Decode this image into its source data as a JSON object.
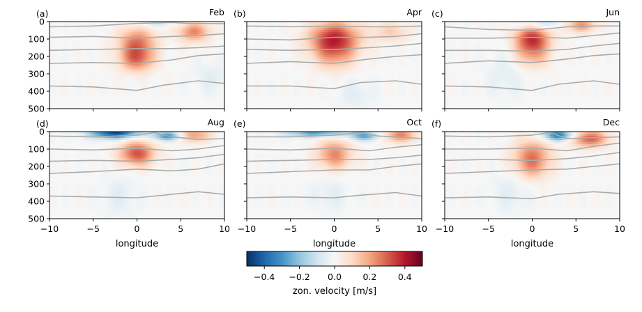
{
  "chart_data": {
    "type": "heatmap",
    "panels": [
      {
        "letter": "(a)",
        "month": "Feb"
      },
      {
        "letter": "(b)",
        "month": "Apr"
      },
      {
        "letter": "(c)",
        "month": "Jun"
      },
      {
        "letter": "(d)",
        "month": "Aug"
      },
      {
        "letter": "(e)",
        "month": "Oct"
      },
      {
        "letter": "(f)",
        "month": "Dec"
      }
    ],
    "xlabel": "longitude",
    "xlim": [
      -10,
      10
    ],
    "xticks": [
      -10,
      -5,
      0,
      5,
      10
    ],
    "ylim": [
      500,
      0
    ],
    "yticks": [
      0,
      100,
      200,
      300,
      400,
      500
    ],
    "colorbar": {
      "label": "zon. velocity [m/s]",
      "range": [
        -0.5,
        0.5
      ],
      "ticks": [
        -0.4,
        -0.2,
        0.0,
        0.2,
        0.4
      ],
      "tick_labels": [
        "−0.4",
        "−0.2",
        "0.0",
        "0.2",
        "0.4"
      ],
      "colormap": "RdBu_r"
    },
    "contour_color": "#aaaaaa",
    "fields": [
      {
        "blobs": [
          {
            "lon": 0.0,
            "depth": 120,
            "slon": 1.5,
            "sdep": 60,
            "amp": 0.26
          },
          {
            "lon": 0.0,
            "depth": 220,
            "slon": 1.4,
            "sdep": 50,
            "amp": 0.24
          },
          {
            "lon": 6.5,
            "depth": 60,
            "slon": 1.3,
            "sdep": 40,
            "amp": 0.24
          },
          {
            "lon": 2.0,
            "depth": 5,
            "slon": 1.5,
            "sdep": 20,
            "amp": -0.1
          },
          {
            "lon": 8.5,
            "depth": 320,
            "slon": 1.5,
            "sdep": 60,
            "amp": -0.05
          }
        ],
        "contours": [
          {
            "lon": [
              -10,
              -5,
              0,
              4,
              6,
              10
            ],
            "depth": [
              30,
              25,
              10,
              5,
              10,
              12
            ]
          },
          {
            "lon": [
              -10,
              -5,
              0,
              4,
              7,
              10
            ],
            "depth": [
              90,
              85,
              95,
              85,
              80,
              70
            ]
          },
          {
            "lon": [
              -10,
              -5,
              0,
              4,
              7,
              10
            ],
            "depth": [
              165,
              160,
              155,
              155,
              150,
              140
            ]
          },
          {
            "lon": [
              -10,
              -5,
              0,
              4,
              7,
              10
            ],
            "depth": [
              240,
              235,
              240,
              220,
              195,
              185
            ]
          },
          {
            "lon": [
              -10,
              -5,
              0,
              3,
              7,
              10
            ],
            "depth": [
              370,
              375,
              395,
              365,
              340,
              355
            ]
          }
        ]
      },
      {
        "blobs": [
          {
            "lon": 0.0,
            "depth": 100,
            "slon": 2.0,
            "sdep": 70,
            "amp": 0.38
          },
          {
            "lon": 0.0,
            "depth": 210,
            "slon": 1.6,
            "sdep": 60,
            "amp": 0.12
          },
          {
            "lon": 6.5,
            "depth": 60,
            "slon": 1.5,
            "sdep": 40,
            "amp": 0.12
          },
          {
            "lon": 2.5,
            "depth": 420,
            "slon": 1.5,
            "sdep": 60,
            "amp": -0.05
          }
        ],
        "contours": [
          {
            "lon": [
              -10,
              -5,
              0,
              4,
              7,
              10
            ],
            "depth": [
              25,
              30,
              25,
              30,
              30,
              25
            ]
          },
          {
            "lon": [
              -10,
              -5,
              0,
              4,
              7,
              10
            ],
            "depth": [
              100,
              105,
              90,
              90,
              85,
              70
            ]
          },
          {
            "lon": [
              -10,
              -5,
              0,
              4,
              7,
              10
            ],
            "depth": [
              160,
              165,
              160,
              150,
              140,
              125
            ]
          },
          {
            "lon": [
              -10,
              -5,
              0,
              4,
              7,
              10
            ],
            "depth": [
              240,
              230,
              240,
              215,
              200,
              190
            ]
          },
          {
            "lon": [
              -10,
              -5,
              0,
              3,
              7,
              10
            ],
            "depth": [
              370,
              370,
              385,
              350,
              340,
              360
            ]
          }
        ]
      },
      {
        "blobs": [
          {
            "lon": 0.0,
            "depth": 100,
            "slon": 1.4,
            "sdep": 55,
            "amp": 0.36
          },
          {
            "lon": 0.0,
            "depth": 200,
            "slon": 1.4,
            "sdep": 50,
            "amp": 0.15
          },
          {
            "lon": 5.5,
            "depth": 20,
            "slon": 1.3,
            "sdep": 30,
            "amp": 0.22
          },
          {
            "lon": 1.0,
            "depth": 10,
            "slon": 2.0,
            "sdep": 25,
            "amp": -0.12
          },
          {
            "lon": -3.0,
            "depth": 300,
            "slon": 1.5,
            "sdep": 90,
            "amp": -0.05
          }
        ],
        "contours": [
          {
            "lon": [
              -10,
              -5,
              0,
              4,
              7,
              10
            ],
            "depth": [
              30,
              45,
              50,
              30,
              25,
              25
            ]
          },
          {
            "lon": [
              -10,
              -5,
              0,
              4,
              7,
              10
            ],
            "depth": [
              95,
              95,
              90,
              95,
              80,
              65
            ]
          },
          {
            "lon": [
              -10,
              -5,
              0,
              4,
              7,
              10
            ],
            "depth": [
              165,
              165,
              170,
              160,
              140,
              125
            ]
          },
          {
            "lon": [
              -10,
              -5,
              0,
              4,
              7,
              10
            ],
            "depth": [
              240,
              225,
              235,
              215,
              195,
              185
            ]
          },
          {
            "lon": [
              -10,
              -5,
              0,
              3,
              7,
              10
            ],
            "depth": [
              370,
              375,
              395,
              360,
              340,
              360
            ]
          }
        ]
      },
      {
        "blobs": [
          {
            "lon": -2.5,
            "depth": 5,
            "slon": 2.0,
            "sdep": 25,
            "amp": -0.45
          },
          {
            "lon": 3.5,
            "depth": 25,
            "slon": 1.2,
            "sdep": 20,
            "amp": -0.3
          },
          {
            "lon": 0.0,
            "depth": 125,
            "slon": 1.4,
            "sdep": 50,
            "amp": 0.32
          },
          {
            "lon": 6.5,
            "depth": 20,
            "slon": 1.3,
            "sdep": 30,
            "amp": 0.22
          },
          {
            "lon": -2.0,
            "depth": 370,
            "slon": 1.5,
            "sdep": 80,
            "amp": -0.05
          }
        ],
        "contours": [
          {
            "lon": [
              -10,
              -5,
              0,
              2,
              4,
              7,
              10
            ],
            "depth": [
              25,
              30,
              20,
              5,
              30,
              45,
              40
            ]
          },
          {
            "lon": [
              -10,
              -5,
              0,
              4,
              7,
              10
            ],
            "depth": [
              100,
              105,
              95,
              110,
              100,
              80
            ]
          },
          {
            "lon": [
              -10,
              -5,
              0,
              4,
              7,
              10
            ],
            "depth": [
              170,
              165,
              170,
              160,
              150,
              130
            ]
          },
          {
            "lon": [
              -10,
              -5,
              0,
              4,
              7,
              10
            ],
            "depth": [
              240,
              230,
              215,
              225,
              215,
              185
            ]
          },
          {
            "lon": [
              -10,
              -5,
              0,
              3,
              7,
              10
            ],
            "depth": [
              370,
              375,
              380,
              365,
              345,
              360
            ]
          }
        ]
      },
      {
        "blobs": [
          {
            "lon": 0.0,
            "depth": 130,
            "slon": 1.4,
            "sdep": 60,
            "amp": 0.24
          },
          {
            "lon": 7.5,
            "depth": 20,
            "slon": 1.4,
            "sdep": 30,
            "amp": 0.24
          },
          {
            "lon": -2.0,
            "depth": 5,
            "slon": 2.5,
            "sdep": 20,
            "amp": -0.28
          },
          {
            "lon": 3.5,
            "depth": 25,
            "slon": 1.3,
            "sdep": 20,
            "amp": -0.25
          },
          {
            "lon": -0.5,
            "depth": 360,
            "slon": 1.5,
            "sdep": 70,
            "amp": -0.05
          }
        ],
        "contours": [
          {
            "lon": [
              -10,
              -5,
              0,
              3,
              5,
              7,
              10
            ],
            "depth": [
              30,
              30,
              20,
              5,
              25,
              30,
              40
            ]
          },
          {
            "lon": [
              -10,
              -5,
              0,
              4,
              7,
              10
            ],
            "depth": [
              100,
              105,
              95,
              110,
              90,
              75
            ]
          },
          {
            "lon": [
              -10,
              -5,
              0,
              4,
              7,
              10
            ],
            "depth": [
              170,
              165,
              160,
              160,
              150,
              135
            ]
          },
          {
            "lon": [
              -10,
              -5,
              0,
              4,
              7,
              10
            ],
            "depth": [
              240,
              230,
              220,
              220,
              200,
              185
            ]
          },
          {
            "lon": [
              -10,
              -5,
              0,
              3,
              7,
              10
            ],
            "depth": [
              380,
              375,
              380,
              365,
              350,
              370
            ]
          }
        ]
      },
      {
        "blobs": [
          {
            "lon": 0.0,
            "depth": 135,
            "slon": 1.5,
            "sdep": 65,
            "amp": 0.24
          },
          {
            "lon": 0.0,
            "depth": 220,
            "slon": 1.4,
            "sdep": 50,
            "amp": 0.1
          },
          {
            "lon": 6.5,
            "depth": 40,
            "slon": 1.5,
            "sdep": 35,
            "amp": 0.3
          },
          {
            "lon": 3.0,
            "depth": 20,
            "slon": 1.3,
            "sdep": 25,
            "amp": -0.35
          },
          {
            "lon": -2.5,
            "depth": 350,
            "slon": 1.5,
            "sdep": 80,
            "amp": -0.05
          }
        ],
        "contours": [
          {
            "lon": [
              -10,
              -5,
              0,
              2,
              4,
              7,
              10
            ],
            "depth": [
              25,
              30,
              20,
              5,
              40,
              35,
              30
            ]
          },
          {
            "lon": [
              -10,
              -5,
              0,
              4,
              7,
              10
            ],
            "depth": [
              100,
              100,
              95,
              110,
              85,
              65
            ]
          },
          {
            "lon": [
              -10,
              -5,
              0,
              4,
              7,
              10
            ],
            "depth": [
              165,
              160,
              165,
              155,
              140,
              120
            ]
          },
          {
            "lon": [
              -10,
              -5,
              0,
              4,
              7,
              10
            ],
            "depth": [
              240,
              230,
              220,
              215,
              200,
              185
            ]
          },
          {
            "lon": [
              -10,
              -5,
              0,
              3,
              7,
              10
            ],
            "depth": [
              380,
              375,
              385,
              360,
              345,
              355
            ]
          }
        ]
      }
    ]
  }
}
